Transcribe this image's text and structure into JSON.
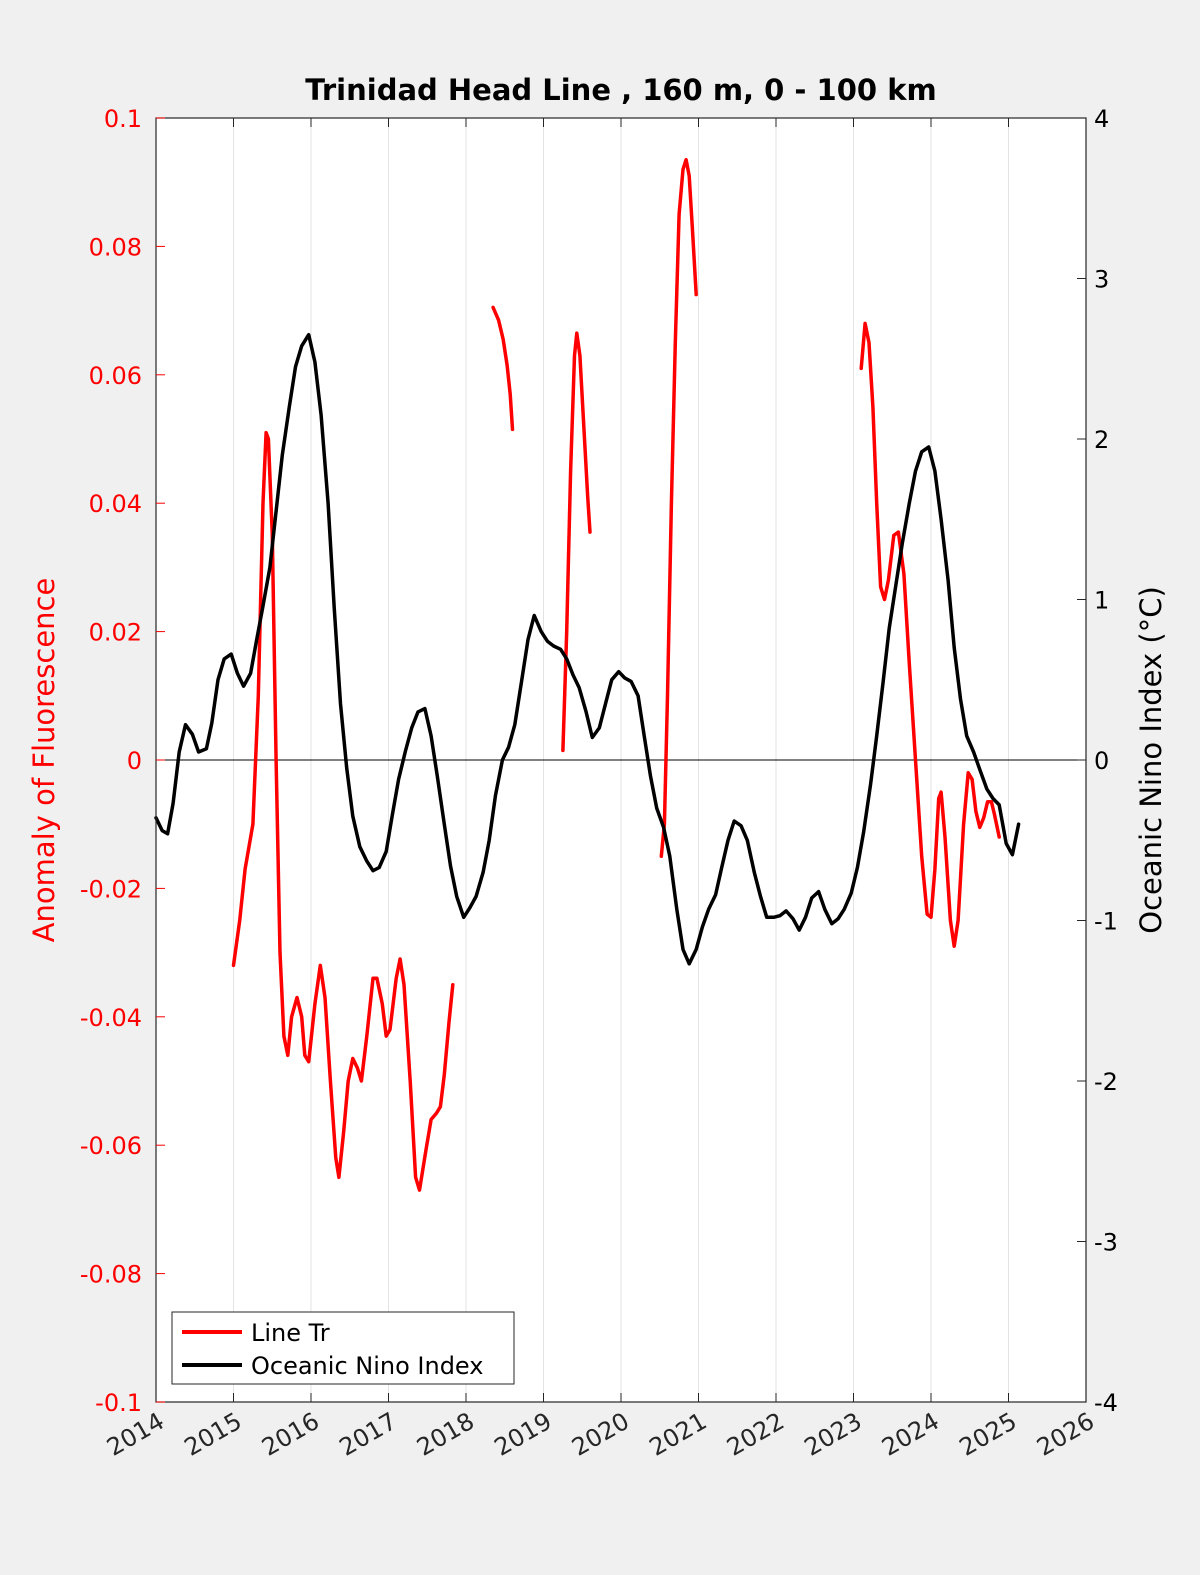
{
  "chart_data": {
    "type": "line",
    "title": "Trinidad Head Line , 160 m, 0 - 100 km",
    "ylabel_left": "Anomaly of Fluorescence",
    "ylabel_right": "Oceanic Nino Index (°C)",
    "xlim": [
      2014,
      2026
    ],
    "ylim_left": [
      -0.1,
      0.1
    ],
    "ylim_right": [
      -4,
      4
    ],
    "x_ticks": [
      "2014",
      "2015",
      "2016",
      "2017",
      "2018",
      "2019",
      "2020",
      "2021",
      "2022",
      "2023",
      "2024",
      "2025",
      "2026"
    ],
    "y_left_ticks": [
      "-0.1",
      "-0.08",
      "-0.06",
      "-0.04",
      "-0.02",
      "0",
      "0.02",
      "0.04",
      "0.06",
      "0.08",
      "0.1"
    ],
    "y_right_ticks": [
      "-4",
      "-3",
      "-2",
      "-1",
      "0",
      "1",
      "2",
      "3",
      "4"
    ],
    "grid": "vertical",
    "zero_line": true,
    "legend_position": "bottom-left",
    "colors": {
      "line_tr": "#ff0000",
      "oni": "#000000",
      "left_axis": "#ff0000",
      "right_axis": "#000000"
    },
    "series": [
      {
        "name": "Line Tr",
        "axis": "left",
        "segments": [
          [
            [
              2015.0,
              -0.032
            ],
            [
              2015.08,
              -0.025
            ],
            [
              2015.15,
              -0.017
            ],
            [
              2015.25,
              -0.01
            ],
            [
              2015.32,
              0.01
            ],
            [
              2015.38,
              0.04
            ],
            [
              2015.42,
              0.051
            ],
            [
              2015.45,
              0.05
            ],
            [
              2015.5,
              0.035
            ],
            [
              2015.55,
              0.0
            ],
            [
              2015.6,
              -0.03
            ],
            [
              2015.65,
              -0.043
            ],
            [
              2015.7,
              -0.046
            ],
            [
              2015.75,
              -0.04
            ],
            [
              2015.82,
              -0.037
            ],
            [
              2015.88,
              -0.04
            ],
            [
              2015.92,
              -0.046
            ],
            [
              2015.97,
              -0.047
            ],
            [
              2016.05,
              -0.038
            ],
            [
              2016.12,
              -0.032
            ],
            [
              2016.18,
              -0.037
            ],
            [
              2016.25,
              -0.05
            ],
            [
              2016.32,
              -0.062
            ],
            [
              2016.36,
              -0.065
            ],
            [
              2016.42,
              -0.058
            ],
            [
              2016.48,
              -0.05
            ],
            [
              2016.54,
              -0.0465
            ],
            [
              2016.6,
              -0.048
            ],
            [
              2016.65,
              -0.05
            ],
            [
              2016.72,
              -0.043
            ],
            [
              2016.8,
              -0.034
            ],
            [
              2016.85,
              -0.034
            ],
            [
              2016.92,
              -0.038
            ],
            [
              2016.97,
              -0.043
            ],
            [
              2017.02,
              -0.042
            ],
            [
              2017.1,
              -0.034
            ],
            [
              2017.15,
              -0.031
            ],
            [
              2017.2,
              -0.035
            ],
            [
              2017.28,
              -0.05
            ],
            [
              2017.35,
              -0.065
            ],
            [
              2017.4,
              -0.067
            ],
            [
              2017.48,
              -0.061
            ],
            [
              2017.55,
              -0.056
            ],
            [
              2017.62,
              -0.055
            ],
            [
              2017.67,
              -0.054
            ],
            [
              2017.72,
              -0.049
            ],
            [
              2017.78,
              -0.041
            ],
            [
              2017.83,
              -0.035
            ]
          ],
          [
            [
              2018.35,
              0.0705
            ],
            [
              2018.42,
              0.0685
            ],
            [
              2018.48,
              0.0655
            ],
            [
              2018.53,
              0.0615
            ],
            [
              2018.57,
              0.057
            ],
            [
              2018.6,
              0.0515
            ]
          ],
          [
            [
              2019.25,
              0.0015
            ],
            [
              2019.3,
              0.02
            ],
            [
              2019.35,
              0.045
            ],
            [
              2019.4,
              0.063
            ],
            [
              2019.43,
              0.0665
            ],
            [
              2019.47,
              0.063
            ],
            [
              2019.52,
              0.052
            ],
            [
              2019.57,
              0.041
            ],
            [
              2019.6,
              0.0355
            ]
          ],
          [
            [
              2020.52,
              -0.015
            ],
            [
              2020.56,
              -0.01
            ],
            [
              2020.6,
              0.01
            ],
            [
              2020.65,
              0.04
            ],
            [
              2020.7,
              0.065
            ],
            [
              2020.75,
              0.085
            ],
            [
              2020.8,
              0.092
            ],
            [
              2020.84,
              0.0935
            ],
            [
              2020.88,
              0.091
            ],
            [
              2020.92,
              0.083
            ],
            [
              2020.97,
              0.0725
            ]
          ],
          [
            [
              2023.1,
              0.061
            ],
            [
              2023.15,
              0.068
            ],
            [
              2023.2,
              0.065
            ],
            [
              2023.25,
              0.055
            ],
            [
              2023.3,
              0.04
            ],
            [
              2023.35,
              0.027
            ],
            [
              2023.4,
              0.025
            ],
            [
              2023.45,
              0.028
            ],
            [
              2023.52,
              0.035
            ],
            [
              2023.58,
              0.0355
            ],
            [
              2023.65,
              0.029
            ],
            [
              2023.72,
              0.015
            ],
            [
              2023.8,
              0.0
            ],
            [
              2023.88,
              -0.015
            ],
            [
              2023.95,
              -0.024
            ],
            [
              2024.0,
              -0.0245
            ],
            [
              2024.05,
              -0.017
            ],
            [
              2024.1,
              -0.006
            ],
            [
              2024.13,
              -0.005
            ],
            [
              2024.18,
              -0.012
            ],
            [
              2024.25,
              -0.025
            ],
            [
              2024.3,
              -0.029
            ],
            [
              2024.35,
              -0.025
            ],
            [
              2024.42,
              -0.01
            ],
            [
              2024.48,
              -0.002
            ],
            [
              2024.53,
              -0.003
            ],
            [
              2024.58,
              -0.008
            ],
            [
              2024.63,
              -0.0105
            ],
            [
              2024.68,
              -0.009
            ],
            [
              2024.73,
              -0.0065
            ],
            [
              2024.78,
              -0.0065
            ],
            [
              2024.82,
              -0.0085
            ],
            [
              2024.88,
              -0.012
            ]
          ]
        ]
      },
      {
        "name": "Oceanic Nino Index",
        "axis": "right",
        "segments": [
          [
            [
              2014.0,
              -0.36
            ],
            [
              2014.08,
              -0.44
            ],
            [
              2014.15,
              -0.46
            ],
            [
              2014.22,
              -0.27
            ],
            [
              2014.3,
              0.05
            ],
            [
              2014.38,
              0.22
            ],
            [
              2014.47,
              0.16
            ],
            [
              2014.55,
              0.05
            ],
            [
              2014.65,
              0.07
            ],
            [
              2014.72,
              0.23
            ],
            [
              2014.8,
              0.5
            ],
            [
              2014.88,
              0.63
            ],
            [
              2014.97,
              0.66
            ],
            [
              2015.05,
              0.54
            ],
            [
              2015.13,
              0.46
            ],
            [
              2015.22,
              0.54
            ],
            [
              2015.3,
              0.75
            ],
            [
              2015.38,
              0.96
            ],
            [
              2015.47,
              1.2
            ],
            [
              2015.55,
              1.55
            ],
            [
              2015.63,
              1.9
            ],
            [
              2015.72,
              2.2
            ],
            [
              2015.8,
              2.45
            ],
            [
              2015.88,
              2.58
            ],
            [
              2015.97,
              2.65
            ],
            [
              2016.05,
              2.48
            ],
            [
              2016.13,
              2.15
            ],
            [
              2016.22,
              1.6
            ],
            [
              2016.3,
              0.95
            ],
            [
              2016.38,
              0.35
            ],
            [
              2016.46,
              -0.05
            ],
            [
              2016.54,
              -0.35
            ],
            [
              2016.63,
              -0.54
            ],
            [
              2016.72,
              -0.63
            ],
            [
              2016.8,
              -0.69
            ],
            [
              2016.88,
              -0.67
            ],
            [
              2016.97,
              -0.57
            ],
            [
              2017.05,
              -0.34
            ],
            [
              2017.13,
              -0.12
            ],
            [
              2017.22,
              0.06
            ],
            [
              2017.3,
              0.2
            ],
            [
              2017.38,
              0.3
            ],
            [
              2017.47,
              0.32
            ],
            [
              2017.55,
              0.15
            ],
            [
              2017.63,
              -0.1
            ],
            [
              2017.72,
              -0.4
            ],
            [
              2017.8,
              -0.66
            ],
            [
              2017.88,
              -0.85
            ],
            [
              2017.97,
              -0.98
            ],
            [
              2018.05,
              -0.92
            ],
            [
              2018.13,
              -0.85
            ],
            [
              2018.22,
              -0.7
            ],
            [
              2018.3,
              -0.5
            ],
            [
              2018.38,
              -0.22
            ],
            [
              2018.47,
              0.0
            ],
            [
              2018.55,
              0.08
            ],
            [
              2018.63,
              0.22
            ],
            [
              2018.72,
              0.5
            ],
            [
              2018.8,
              0.75
            ],
            [
              2018.88,
              0.9
            ],
            [
              2018.97,
              0.8
            ],
            [
              2019.05,
              0.74
            ],
            [
              2019.13,
              0.71
            ],
            [
              2019.22,
              0.69
            ],
            [
              2019.3,
              0.63
            ],
            [
              2019.38,
              0.53
            ],
            [
              2019.46,
              0.45
            ],
            [
              2019.55,
              0.3
            ],
            [
              2019.63,
              0.14
            ],
            [
              2019.72,
              0.2
            ],
            [
              2019.8,
              0.35
            ],
            [
              2019.88,
              0.5
            ],
            [
              2019.97,
              0.55
            ],
            [
              2020.05,
              0.51
            ],
            [
              2020.13,
              0.49
            ],
            [
              2020.22,
              0.4
            ],
            [
              2020.3,
              0.15
            ],
            [
              2020.38,
              -0.1
            ],
            [
              2020.46,
              -0.3
            ],
            [
              2020.55,
              -0.42
            ],
            [
              2020.63,
              -0.6
            ],
            [
              2020.72,
              -0.93
            ],
            [
              2020.8,
              -1.18
            ],
            [
              2020.88,
              -1.27
            ],
            [
              2020.97,
              -1.18
            ],
            [
              2021.05,
              -1.04
            ],
            [
              2021.13,
              -0.93
            ],
            [
              2021.22,
              -0.84
            ],
            [
              2021.3,
              -0.67
            ],
            [
              2021.38,
              -0.5
            ],
            [
              2021.46,
              -0.38
            ],
            [
              2021.55,
              -0.41
            ],
            [
              2021.63,
              -0.5
            ],
            [
              2021.72,
              -0.7
            ],
            [
              2021.8,
              -0.85
            ],
            [
              2021.88,
              -0.98
            ],
            [
              2021.97,
              -0.98
            ],
            [
              2022.05,
              -0.97
            ],
            [
              2022.13,
              -0.94
            ],
            [
              2022.22,
              -0.99
            ],
            [
              2022.3,
              -1.06
            ],
            [
              2022.38,
              -0.98
            ],
            [
              2022.46,
              -0.86
            ],
            [
              2022.55,
              -0.82
            ],
            [
              2022.63,
              -0.93
            ],
            [
              2022.72,
              -1.02
            ],
            [
              2022.8,
              -0.99
            ],
            [
              2022.88,
              -0.93
            ],
            [
              2022.97,
              -0.83
            ],
            [
              2023.05,
              -0.67
            ],
            [
              2023.13,
              -0.45
            ],
            [
              2023.22,
              -0.15
            ],
            [
              2023.3,
              0.15
            ],
            [
              2023.38,
              0.48
            ],
            [
              2023.46,
              0.82
            ],
            [
              2023.55,
              1.1
            ],
            [
              2023.63,
              1.35
            ],
            [
              2023.72,
              1.6
            ],
            [
              2023.8,
              1.8
            ],
            [
              2023.88,
              1.92
            ],
            [
              2023.97,
              1.95
            ],
            [
              2024.05,
              1.8
            ],
            [
              2024.13,
              1.5
            ],
            [
              2024.22,
              1.12
            ],
            [
              2024.3,
              0.7
            ],
            [
              2024.38,
              0.38
            ],
            [
              2024.46,
              0.15
            ],
            [
              2024.55,
              0.05
            ],
            [
              2024.63,
              -0.06
            ],
            [
              2024.72,
              -0.18
            ],
            [
              2024.8,
              -0.24
            ],
            [
              2024.88,
              -0.28
            ],
            [
              2024.97,
              -0.52
            ],
            [
              2025.05,
              -0.59
            ],
            [
              2025.13,
              -0.4
            ]
          ]
        ]
      }
    ],
    "legend": [
      {
        "label": "Line Tr",
        "color": "#ff0000"
      },
      {
        "label": "Oceanic Nino Index",
        "color": "#000000"
      }
    ]
  }
}
